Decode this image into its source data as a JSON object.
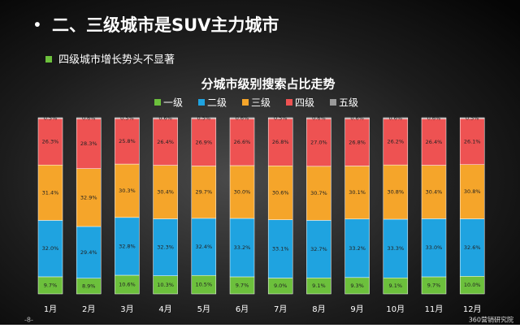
{
  "header": {
    "bullet": "•",
    "title": "二、三级城市是SUV主力城市",
    "subtitle": "四级城市增长势头不显著"
  },
  "chart_data": {
    "type": "stacked_bar",
    "title": "分城市级别搜索占比走势",
    "categories": [
      "1月",
      "2月",
      "3月",
      "4月",
      "5月",
      "6月",
      "7月",
      "8月",
      "9月",
      "10月",
      "11月",
      "12月"
    ],
    "series": [
      {
        "name": "一级",
        "color": "#6cc03c",
        "values": [
          9.7,
          8.9,
          10.6,
          10.3,
          10.5,
          9.7,
          9.0,
          9.1,
          9.3,
          9.1,
          9.7,
          10.0
        ],
        "value_labels": [
          "9.7%",
          "8.9%",
          "10.6%",
          "10.3%",
          "10.5%",
          "9.7%",
          "9.0%",
          "9.1%",
          "9.3%",
          "9.1%",
          "9.7%",
          "10.0%"
        ]
      },
      {
        "name": "二级",
        "color": "#1fa3e0",
        "values": [
          32.0,
          29.4,
          32.8,
          32.3,
          32.4,
          33.2,
          33.1,
          32.7,
          33.2,
          33.3,
          33.0,
          32.6
        ],
        "value_labels": [
          "32.0%",
          "29.4%",
          "32.8%",
          "32.3%",
          "32.4%",
          "33.2%",
          "33.1%",
          "32.7%",
          "33.2%",
          "33.3%",
          "33.0%",
          "32.6%"
        ]
      },
      {
        "name": "三级",
        "color": "#f5a52a",
        "values": [
          31.4,
          32.9,
          30.3,
          30.4,
          29.7,
          30.0,
          30.6,
          30.7,
          30.1,
          30.8,
          30.4,
          30.8
        ],
        "value_labels": [
          "31.4%",
          "32.9%",
          "30.3%",
          "30.4%",
          "29.7%",
          "30.0%",
          "30.6%",
          "30.7%",
          "30.1%",
          "30.8%",
          "30.4%",
          "30.8%"
        ]
      },
      {
        "name": "四级",
        "color": "#ee5252",
        "values": [
          26.3,
          28.3,
          25.8,
          26.4,
          26.9,
          26.6,
          26.8,
          27.0,
          26.8,
          26.2,
          26.4,
          26.1
        ],
        "value_labels": [
          "26.3%",
          "28.3%",
          "25.8%",
          "26.4%",
          "26.9%",
          "26.6%",
          "26.8%",
          "27.0%",
          "26.8%",
          "26.2%",
          "26.4%",
          "26.1%"
        ]
      },
      {
        "name": "五级",
        "color": "#9a9a9a",
        "values": [
          0.5,
          0.6,
          0.5,
          0.6,
          0.5,
          0.6,
          0.5,
          0.6,
          0.6,
          0.6,
          0.6,
          0.5
        ],
        "value_labels": [
          "0.5%",
          "0.6%",
          "0.5%",
          "0.6%",
          "0.5%",
          "0.6%",
          "0.5%",
          "0.6%",
          "0.6%",
          "0.6%",
          "0.6%",
          "0.5%"
        ]
      }
    ],
    "legend": "top"
  },
  "footer": {
    "page": "-8-",
    "brand": "360营销研究院"
  }
}
